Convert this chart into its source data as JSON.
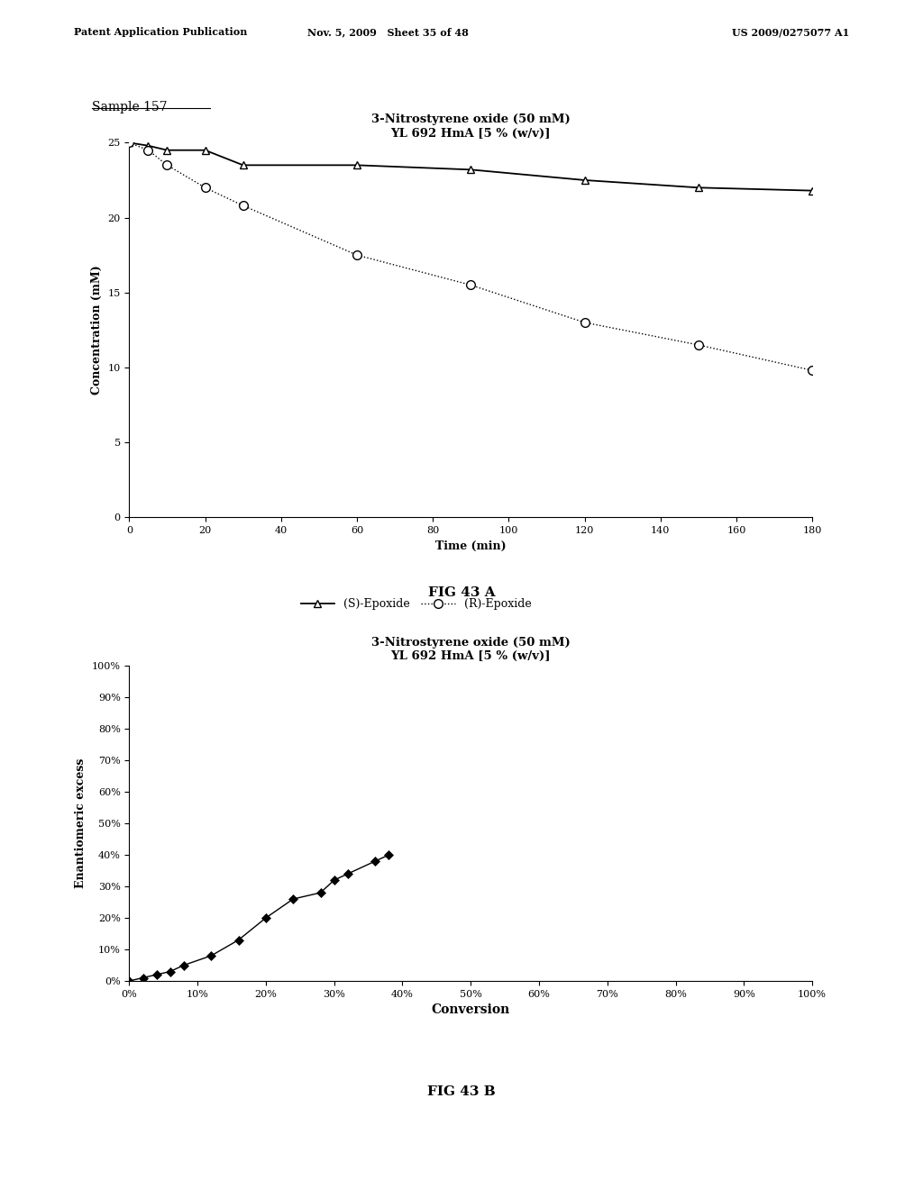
{
  "page_header_left": "Patent Application Publication",
  "page_header_mid": "Nov. 5, 2009   Sheet 35 of 48",
  "page_header_right": "US 2009/0275077 A1",
  "sample_label": "Sample 157",
  "fig_a": {
    "title_line1": "3-Nitrostyrene oxide (50 mM)",
    "title_line2": "YL 692 HmA [5 % (w/v)]",
    "xlabel": "Time (min)",
    "ylabel": "Concentration (mM)",
    "xlim": [
      0,
      180
    ],
    "ylim": [
      0,
      25
    ],
    "xticks": [
      0,
      20,
      40,
      60,
      80,
      100,
      120,
      140,
      160,
      180
    ],
    "yticks": [
      0,
      5,
      10,
      15,
      20,
      25
    ],
    "s_epoxide_x": [
      0,
      5,
      10,
      20,
      30,
      60,
      90,
      120,
      150,
      180
    ],
    "s_epoxide_y": [
      25.0,
      24.8,
      24.5,
      24.5,
      23.5,
      23.5,
      23.2,
      22.5,
      22.0,
      21.8
    ],
    "r_epoxide_x": [
      0,
      5,
      10,
      20,
      30,
      60,
      90,
      120,
      150,
      180
    ],
    "r_epoxide_y": [
      25.0,
      24.5,
      23.5,
      22.0,
      20.8,
      17.5,
      15.5,
      13.0,
      11.5,
      9.8
    ],
    "legend_s": "(S)-Epoxide",
    "legend_r": "(R)-Epoxide",
    "fig_label": "FIG 43 A"
  },
  "fig_b": {
    "title_line1": "3-Nitrostyrene oxide (50 mM)",
    "title_line2": "YL 692 HmA [5 % (w/v)]",
    "xlabel": "Conversion",
    "ylabel": "Enantiomeric excess",
    "xlim": [
      0.0,
      1.0
    ],
    "ylim": [
      0.0,
      1.0
    ],
    "xticks": [
      0.0,
      0.1,
      0.2,
      0.3,
      0.4,
      0.5,
      0.6,
      0.7,
      0.8,
      0.9,
      1.0
    ],
    "yticks": [
      0.0,
      0.1,
      0.2,
      0.3,
      0.4,
      0.5,
      0.6,
      0.7,
      0.8,
      0.9,
      1.0
    ],
    "conv_x": [
      0.0,
      0.02,
      0.04,
      0.06,
      0.08,
      0.12,
      0.16,
      0.2,
      0.24,
      0.28,
      0.3,
      0.32,
      0.36,
      0.38
    ],
    "ee_y": [
      0.0,
      0.01,
      0.02,
      0.03,
      0.05,
      0.08,
      0.13,
      0.2,
      0.26,
      0.28,
      0.32,
      0.34,
      0.38,
      0.4
    ],
    "fig_label": "FIG 43 B"
  },
  "background_color": "#ffffff"
}
